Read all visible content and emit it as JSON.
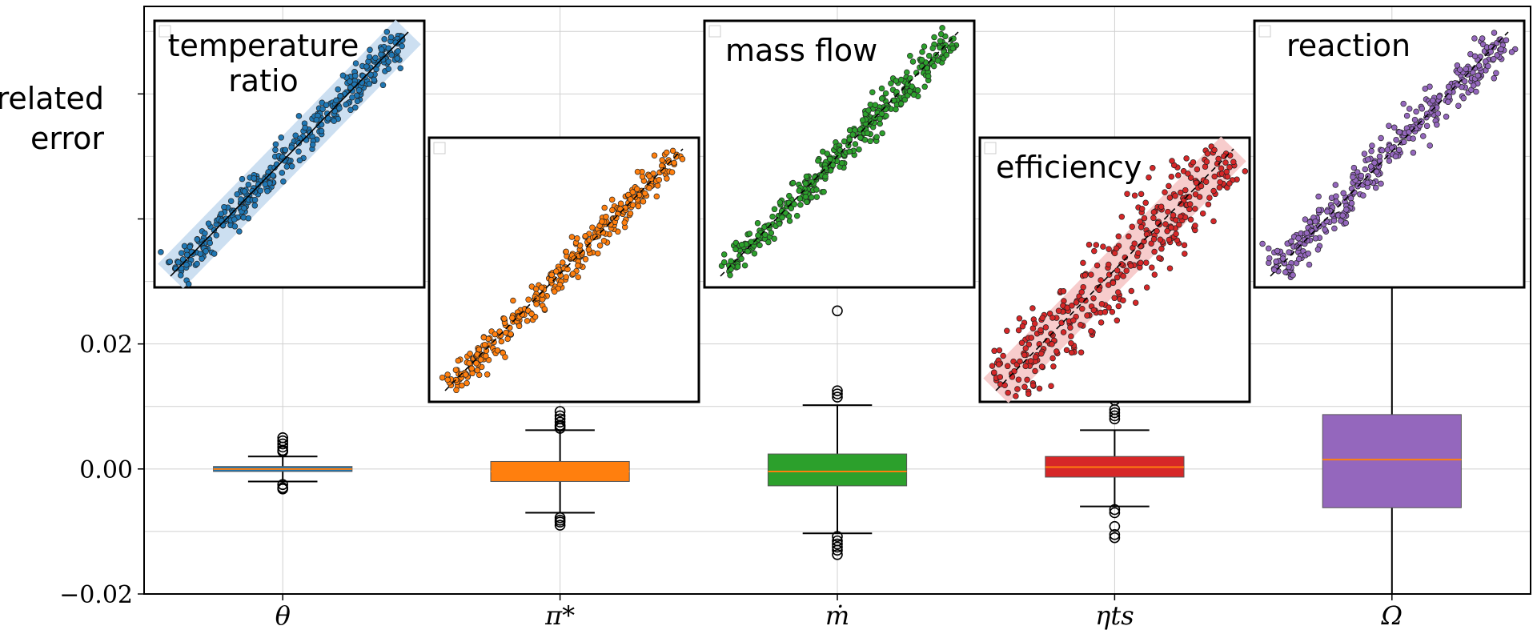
{
  "chart_data": {
    "type": "box",
    "ylabel_lines": [
      "related",
      "error"
    ],
    "ylim": [
      -0.02,
      0.074
    ],
    "yticks": [
      -0.02,
      0.0,
      0.02
    ],
    "ytick_labels": [
      "−0.02",
      "0.00",
      "0.02"
    ],
    "grid": true,
    "categories": [
      "θ",
      "π*",
      "ṁ",
      "ηts",
      "Ω"
    ],
    "series": [
      {
        "name": "θ",
        "color": "#1f77b4",
        "q1": -0.0004,
        "median": 0.0,
        "q3": 0.0004,
        "whisker_low": -0.002,
        "whisker_high": 0.002,
        "outliers": [
          0.005,
          0.0045,
          0.004,
          0.0035,
          0.003,
          0.0028,
          -0.0025,
          -0.003,
          -0.0032
        ]
      },
      {
        "name": "π*",
        "color": "#ff7f0e",
        "q1": -0.002,
        "median": -0.0004,
        "q3": 0.0012,
        "whisker_low": -0.007,
        "whisker_high": 0.0062,
        "outliers": [
          0.0092,
          0.0085,
          0.008,
          0.0075,
          0.007,
          0.0068,
          0.0065,
          -0.0078,
          -0.0082,
          -0.0085,
          -0.009
        ]
      },
      {
        "name": "ṁ",
        "color": "#2ca02c",
        "q1": -0.0027,
        "median": -0.0004,
        "q3": 0.0024,
        "whisker_low": -0.0103,
        "whisker_high": 0.0102,
        "outliers": [
          0.0253,
          0.0125,
          0.012,
          0.0115,
          -0.0108,
          -0.0115,
          -0.012,
          -0.0125,
          -0.013,
          -0.0137
        ]
      },
      {
        "name": "ηts",
        "color": "#d62728",
        "q1": -0.0013,
        "median": 0.0003,
        "q3": 0.002,
        "whisker_low": -0.006,
        "whisker_high": 0.0062,
        "outliers": [
          0.011,
          0.0095,
          0.009,
          0.0085,
          0.008,
          -0.0065,
          -0.007,
          -0.0092,
          -0.0105,
          -0.011
        ]
      },
      {
        "name": "Ω",
        "color": "#9467bd",
        "q1": -0.0062,
        "median": 0.0015,
        "q3": 0.0087,
        "whisker_low": -0.02,
        "whisker_high": 0.0295,
        "outliers": []
      }
    ],
    "insets": [
      {
        "label_lines": [
          "temperature",
          "ratio"
        ],
        "color": "#1f77b4",
        "band": true,
        "band_color": "#c6dbef",
        "spread": 0.02,
        "fit_line": "solid"
      },
      {
        "label_lines": [
          ""
        ],
        "color": "#ff7f0e",
        "band": false,
        "band_color": "",
        "spread": 0.018,
        "fit_line": "dashed"
      },
      {
        "label_lines": [
          "mass flow"
        ],
        "color": "#2ca02c",
        "band": false,
        "band_color": "",
        "spread": 0.02,
        "fit_line": "dashed"
      },
      {
        "label_lines": [
          "efficiency"
        ],
        "color": "#d62728",
        "band": true,
        "band_color": "#f6c7c7",
        "spread": 0.05,
        "fit_line": "dashed"
      },
      {
        "label_lines": [
          "reaction"
        ],
        "color": "#9467bd",
        "band": false,
        "band_color": "",
        "spread": 0.025,
        "fit_line": "dashed"
      }
    ]
  }
}
